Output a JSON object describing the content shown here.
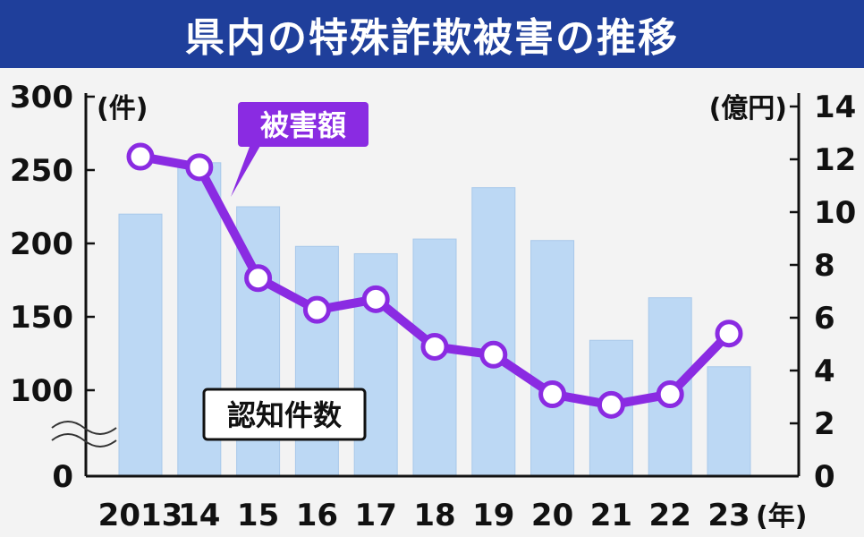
{
  "title": "県内の特殊詐欺被害の推移",
  "colors": {
    "title_bar": "#1f3f9b",
    "bar_fill": "#bcd8f4",
    "bar_stroke": "#a9c9ea",
    "line": "#8a2be2",
    "marker_fill": "#ffffff"
  },
  "chart_data": {
    "type": "bar+line",
    "categories": [
      "2013",
      "14",
      "15",
      "16",
      "17",
      "18",
      "19",
      "20",
      "21",
      "22",
      "23"
    ],
    "x_unit": "(年)",
    "left_axis": {
      "unit": "(件)",
      "ticks": [
        "0",
        "100",
        "150",
        "200",
        "250",
        "300"
      ],
      "broken": true
    },
    "right_axis": {
      "unit": "(億円)",
      "ticks": [
        "0",
        "2",
        "4",
        "6",
        "8",
        "10",
        "12",
        "14"
      ],
      "ylim": [
        0,
        14
      ]
    },
    "series": [
      {
        "name": "認知件数",
        "type": "bar",
        "axis": "left",
        "values": [
          220,
          255,
          225,
          198,
          193,
          203,
          238,
          202,
          134,
          163,
          116
        ]
      },
      {
        "name": "被害額",
        "type": "line",
        "axis": "right",
        "values": [
          12.1,
          11.7,
          7.5,
          6.3,
          6.7,
          4.9,
          4.6,
          3.1,
          2.7,
          3.1,
          5.4
        ]
      }
    ]
  }
}
